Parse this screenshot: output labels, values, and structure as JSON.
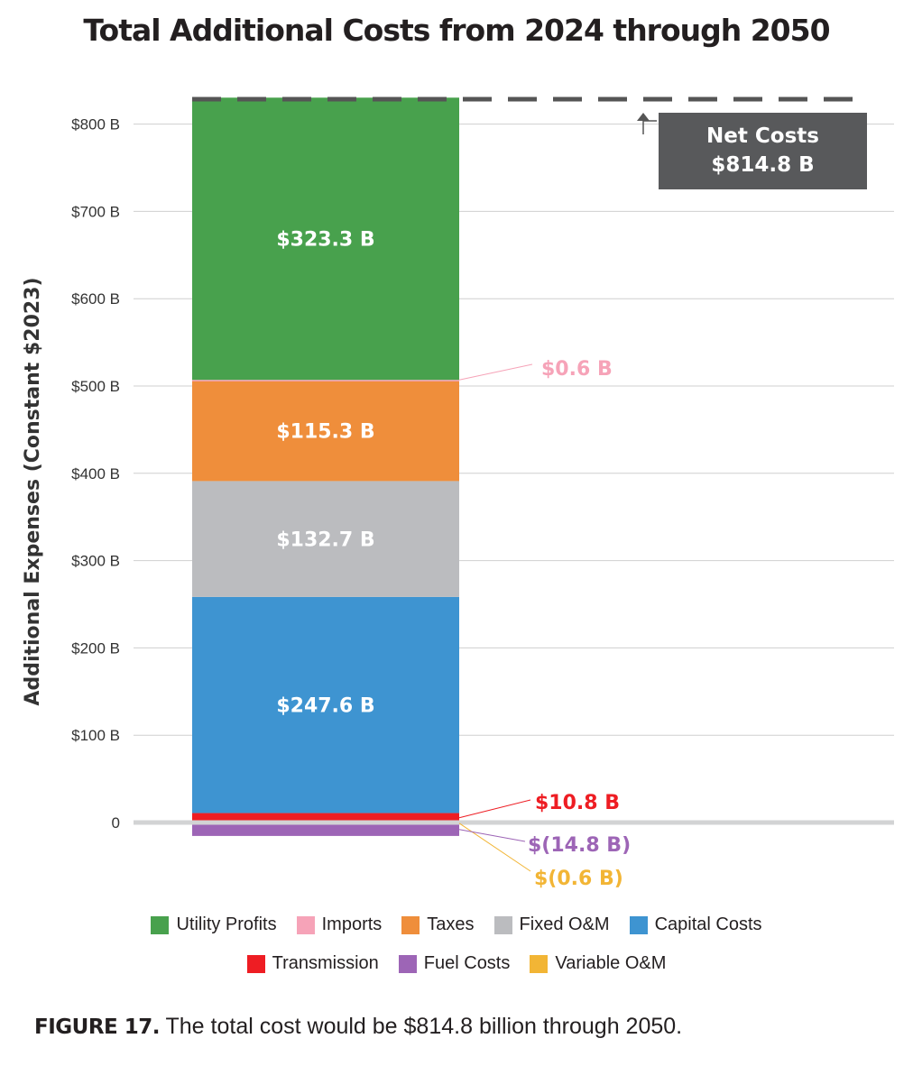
{
  "chart_data": {
    "type": "bar",
    "stacked": true,
    "title": "Total Additional Costs from 2024 through 2050",
    "ylabel": "Additional Expenses (Constant $2023)",
    "xlabel": "",
    "ylim": [
      -30,
      840
    ],
    "yticks": [
      {
        "value": 0,
        "label": "0"
      },
      {
        "value": 100,
        "label": "$100 B"
      },
      {
        "value": 200,
        "label": "$200 B"
      },
      {
        "value": 300,
        "label": "$300 B"
      },
      {
        "value": 400,
        "label": "$400 B"
      },
      {
        "value": 500,
        "label": "$500 B"
      },
      {
        "value": 600,
        "label": "$600 B"
      },
      {
        "value": 700,
        "label": "$700 B"
      },
      {
        "value": 800,
        "label": "$800 B"
      }
    ],
    "grid": true,
    "series": [
      {
        "name": "Variable O&M",
        "value": -0.6,
        "label": "$(0.6 B)",
        "color": "#f2b535",
        "label_position": "callout"
      },
      {
        "name": "Fuel Costs",
        "value": -14.8,
        "label": "$(14.8 B)",
        "color": "#9d65b6",
        "label_position": "callout"
      },
      {
        "name": "Transmission",
        "value": 10.8,
        "label": "$10.8 B",
        "color": "#ee1d23",
        "label_position": "callout"
      },
      {
        "name": "Capital Costs",
        "value": 247.6,
        "label": "$247.6 B",
        "color": "#3e94d1",
        "label_position": "inside"
      },
      {
        "name": "Fixed O&M",
        "value": 132.7,
        "label": "$132.7 B",
        "color": "#bbbcbf",
        "label_position": "inside"
      },
      {
        "name": "Taxes",
        "value": 115.3,
        "label": "$115.3 B",
        "color": "#ef8e3b",
        "label_position": "inside"
      },
      {
        "name": "Imports",
        "value": 0.6,
        "label": "$0.6 B",
        "color": "#f6a3b8",
        "label_position": "callout"
      },
      {
        "name": "Utility Profits",
        "value": 323.3,
        "label": "$323.3 B",
        "color": "#48a14d",
        "label_position": "inside"
      }
    ],
    "net": {
      "label_line1": "Net Costs",
      "label_line2": "$814.8 B",
      "value": 814.8,
      "color": "#58595b"
    },
    "legend": {
      "row1": [
        {
          "name": "Utility Profits",
          "color": "#48a14d"
        },
        {
          "name": "Imports",
          "color": "#f6a3b8"
        },
        {
          "name": "Taxes",
          "color": "#ef8e3b"
        },
        {
          "name": "Fixed O&M",
          "color": "#bbbcbf"
        },
        {
          "name": "Capital Costs",
          "color": "#3e94d1"
        }
      ],
      "row2": [
        {
          "name": "Transmission",
          "color": "#ee1d23"
        },
        {
          "name": "Fuel Costs",
          "color": "#9d65b6"
        },
        {
          "name": "Variable O&M",
          "color": "#f2b535"
        }
      ]
    }
  },
  "caption": {
    "label": "FIGURE 17.",
    "text": " The total cost would be $814.8 billion through 2050."
  }
}
